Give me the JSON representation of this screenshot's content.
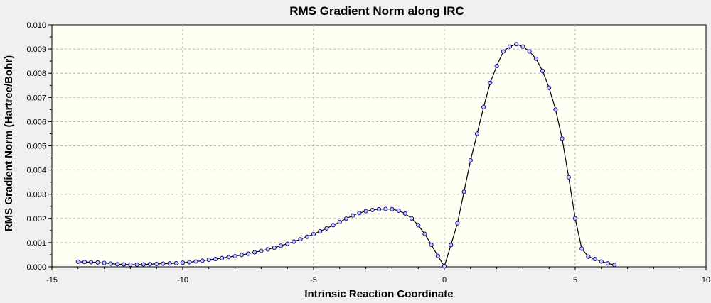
{
  "chart_data": {
    "type": "line",
    "title": "RMS Gradient Norm along IRC",
    "xlabel": "Intrinsic Reaction Coordinate",
    "ylabel": "RMS Gradient Norm (Hartree/Bohr)",
    "xlim": [
      -15,
      10
    ],
    "ylim": [
      0,
      0.01
    ],
    "x_ticks": [
      -15,
      -10,
      -5,
      0,
      5,
      10
    ],
    "x_tick_labels": [
      "-15",
      "-10",
      "-5",
      "0",
      "5",
      "10"
    ],
    "y_ticks": [
      0,
      0.001,
      0.002,
      0.003,
      0.004,
      0.005,
      0.006,
      0.007,
      0.008,
      0.009,
      0.01
    ],
    "y_tick_labels": [
      "0.000",
      "0.001",
      "0.002",
      "0.003",
      "0.004",
      "0.005",
      "0.006",
      "0.007",
      "0.008",
      "0.009",
      "0.010"
    ],
    "grid": true,
    "legend": "none",
    "colors": {
      "plot_background": "#fffff4",
      "outer_background": "#f0f0f0",
      "line": "#000000",
      "marker_fill": "#c8c8f0",
      "marker_edge": "#00008b",
      "grid": "#b4b4b4"
    },
    "series": [
      {
        "x": [
          -14.0,
          -13.75,
          -13.5,
          -13.25,
          -13.0,
          -12.75,
          -12.5,
          -12.25,
          -12.0,
          -11.75,
          -11.5,
          -11.25,
          -11.0,
          -10.75,
          -10.5,
          -10.25,
          -10.0,
          -9.75,
          -9.5,
          -9.25,
          -9.0,
          -8.75,
          -8.5,
          -8.25,
          -8.0,
          -7.75,
          -7.5,
          -7.25,
          -7.0,
          -6.75,
          -6.5,
          -6.25,
          -6.0,
          -5.75,
          -5.5,
          -5.25,
          -5.0,
          -4.75,
          -4.5,
          -4.25,
          -4.0,
          -3.75,
          -3.5,
          -3.25,
          -3.0,
          -2.75,
          -2.5,
          -2.25,
          -2.0,
          -1.75,
          -1.5,
          -1.25,
          -1.0,
          -0.75,
          -0.5,
          -0.25,
          0.0,
          0.25,
          0.5,
          0.75,
          1.0,
          1.25,
          1.5,
          1.75,
          2.0,
          2.25,
          2.5,
          2.75,
          3.0,
          3.25,
          3.5,
          3.75,
          4.0,
          4.25,
          4.5,
          4.75,
          5.0,
          5.25,
          5.5,
          5.75,
          6.0,
          6.25,
          6.5
        ],
        "y": [
          0.00021,
          0.0002,
          0.00019,
          0.00018,
          0.00016,
          0.00013,
          0.00011,
          0.0001,
          9e-05,
          9e-05,
          0.0001,
          0.00011,
          0.00012,
          0.00013,
          0.00014,
          0.00015,
          0.00017,
          0.00019,
          0.00022,
          0.00025,
          0.00029,
          0.00032,
          0.00036,
          0.0004,
          0.00044,
          0.00049,
          0.00054,
          0.0006,
          0.00066,
          0.00072,
          0.00079,
          0.00087,
          0.00095,
          0.00104,
          0.00114,
          0.00124,
          0.00135,
          0.00147,
          0.00159,
          0.00172,
          0.00185,
          0.00199,
          0.00212,
          0.00222,
          0.0023,
          0.00235,
          0.00238,
          0.00239,
          0.00238,
          0.00232,
          0.0022,
          0.002,
          0.00172,
          0.00136,
          0.00091,
          0.00045,
          2e-05,
          0.0009,
          0.0018,
          0.0031,
          0.0044,
          0.0055,
          0.0066,
          0.0076,
          0.0083,
          0.0089,
          0.0091,
          0.0092,
          0.0091,
          0.0089,
          0.0086,
          0.0081,
          0.0074,
          0.0065,
          0.0053,
          0.0037,
          0.002,
          0.00075,
          0.00042,
          0.00032,
          0.00022,
          0.00014,
          8e-05
        ]
      }
    ]
  }
}
